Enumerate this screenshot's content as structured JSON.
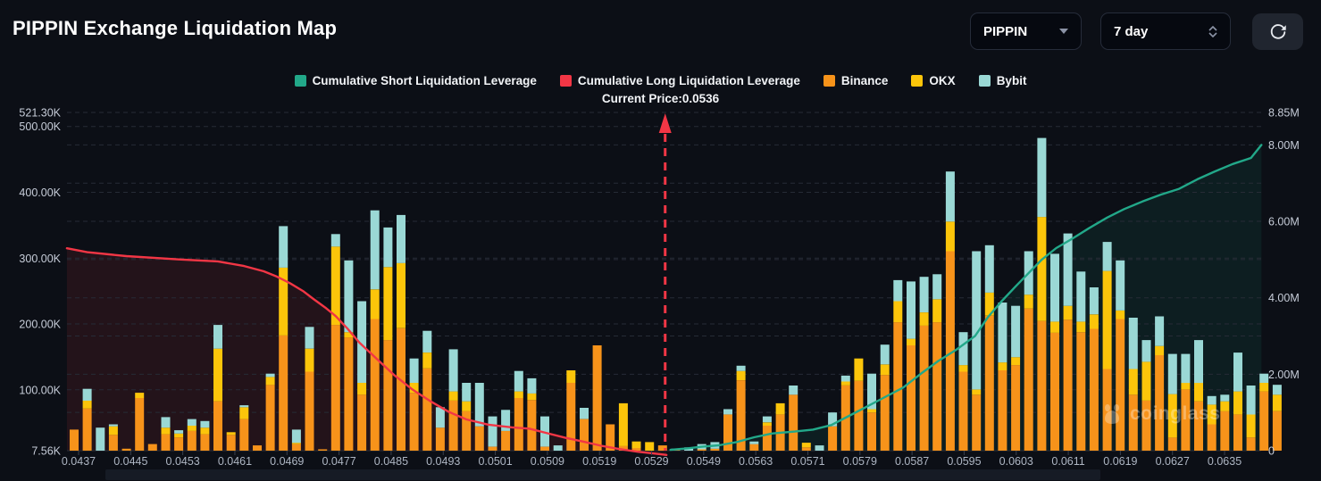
{
  "header": {
    "title": "PIPPIN Exchange Liquidation Map",
    "coin_select_value": "PIPPIN",
    "period_select_value": "7 day"
  },
  "legend": {
    "items": [
      {
        "label": "Cumulative Short Liquidation Leverage",
        "color": "#22a889"
      },
      {
        "label": "Cumulative Long Liquidation Leverage",
        "color": "#f23645"
      },
      {
        "label": "Binance",
        "color": "#f7931a"
      },
      {
        "label": "OKX",
        "color": "#fcc50a"
      },
      {
        "label": "Bybit",
        "color": "#9ad8d5"
      }
    ]
  },
  "annotation": {
    "current_price_text": "Current Price:0.0536",
    "line_color": "#f23645"
  },
  "watermark": {
    "text": "coinglass"
  },
  "chart_data": {
    "type": "bar",
    "subtype": "stacked-bars-with-cumulative-lines",
    "title": "PIPPIN Exchange Liquidation Map",
    "current_price": 0.0536,
    "current_price_bar_index": 45.2,
    "left_axis": {
      "unit": "K",
      "min": 7.56,
      "max": 521.3,
      "labels": [
        {
          "v": 521.3,
          "t": "521.30K"
        },
        {
          "v": 500,
          "t": "500.00K"
        },
        {
          "v": 400,
          "t": "400.00K"
        },
        {
          "v": 300,
          "t": "300.00K"
        },
        {
          "v": 200,
          "t": "200.00K"
        },
        {
          "v": 100,
          "t": "100.00K"
        },
        {
          "v": 7.56,
          "t": "7.56K"
        }
      ],
      "grid_values": [
        521.3,
        500,
        400,
        300,
        200,
        100
      ]
    },
    "right_axis": {
      "unit": "M",
      "min": 0,
      "max": 8.85,
      "labels": [
        {
          "v": 8.85,
          "t": "8.85M"
        },
        {
          "v": 8,
          "t": "8.00M"
        },
        {
          "v": 6,
          "t": "6.00M"
        },
        {
          "v": 4,
          "t": "4.00M"
        },
        {
          "v": 2,
          "t": "2.00M"
        },
        {
          "v": 0,
          "t": "0"
        }
      ],
      "grid_values": [
        8.85,
        8,
        7,
        6,
        5,
        4,
        3,
        2,
        1
      ]
    },
    "x_axis": {
      "labels": [
        "0.0437",
        "0.0445",
        "0.0453",
        "0.0461",
        "0.0469",
        "0.0477",
        "0.0485",
        "0.0493",
        "0.0501",
        "0.0509",
        "0.0519",
        "0.0529",
        "0.0549",
        "0.0563",
        "0.0571",
        "0.0579",
        "0.0587",
        "0.0595",
        "0.0603",
        "0.0611",
        "0.0619",
        "0.0627",
        "0.0635"
      ],
      "bars_per_label": 4
    },
    "bars": {
      "series_order": [
        "Binance",
        "OKX",
        "Bybit"
      ],
      "colors": [
        "#f7931a",
        "#fcc50a",
        "#9ad8d5"
      ],
      "unit": "K",
      "data": [
        [
          32,
          0,
          0
        ],
        [
          64,
          12,
          18
        ],
        [
          0,
          0,
          35
        ],
        [
          24,
          13,
          3
        ],
        [
          3,
          0,
          0
        ],
        [
          80,
          8,
          0
        ],
        [
          10,
          0,
          0
        ],
        [
          25,
          10,
          16
        ],
        [
          20,
          6,
          5
        ],
        [
          30,
          8,
          10
        ],
        [
          25,
          10,
          10
        ],
        [
          75,
          80,
          36
        ],
        [
          24,
          4,
          0
        ],
        [
          48,
          18,
          3
        ],
        [
          8,
          0,
          0
        ],
        [
          100,
          12,
          5
        ],
        [
          175,
          103,
          63
        ],
        [
          10,
          2,
          20
        ],
        [
          120,
          35,
          33
        ],
        [
          2,
          0,
          0
        ],
        [
          191,
          119,
          19
        ],
        [
          172,
          8,
          109
        ],
        [
          85,
          18,
          124
        ],
        [
          200,
          45,
          120
        ],
        [
          168,
          111,
          60
        ],
        [
          186,
          99,
          73
        ],
        [
          88,
          15,
          37
        ],
        [
          125,
          24,
          33
        ],
        [
          35,
          0,
          31
        ],
        [
          76,
          14,
          64
        ],
        [
          60,
          15,
          28
        ],
        [
          37,
          0,
          66
        ],
        [
          6,
          0,
          46
        ],
        [
          30,
          0,
          32
        ],
        [
          80,
          10,
          31
        ],
        [
          77,
          10,
          23
        ],
        [
          6,
          0,
          46
        ],
        [
          0,
          0,
          8
        ],
        [
          103,
          19,
          0
        ],
        [
          48,
          0,
          17
        ],
        [
          160,
          0,
          0
        ],
        [
          40,
          0,
          0
        ],
        [
          7,
          65,
          0
        ],
        [
          4,
          10,
          0
        ],
        [
          0,
          13,
          0
        ],
        [
          8,
          0,
          0
        ],
        [
          1,
          0,
          2
        ],
        [
          0,
          0,
          5
        ],
        [
          2,
          0,
          8
        ],
        [
          3,
          0,
          10
        ],
        [
          55,
          0,
          8
        ],
        [
          107,
          14,
          8
        ],
        [
          10,
          0,
          4
        ],
        [
          38,
          5,
          9
        ],
        [
          55,
          17,
          0
        ],
        [
          85,
          0,
          14
        ],
        [
          5,
          7,
          0
        ],
        [
          0,
          0,
          8
        ],
        [
          37,
          0,
          21
        ],
        [
          99,
          6,
          9
        ],
        [
          106,
          34,
          0
        ],
        [
          58,
          5,
          54
        ],
        [
          115,
          16,
          30
        ],
        [
          195,
          32,
          32
        ],
        [
          160,
          10,
          87
        ],
        [
          190,
          20,
          54
        ],
        [
          195,
          35,
          38
        ],
        [
          303,
          45,
          76
        ],
        [
          120,
          10,
          50
        ],
        [
          85,
          8,
          210
        ],
        [
          205,
          35,
          72
        ],
        [
          122,
          12,
          91
        ],
        [
          130,
          12,
          78
        ],
        [
          216,
          21,
          66
        ],
        [
          197,
          158,
          120
        ],
        [
          179,
          17,
          103
        ],
        [
          199,
          21,
          110
        ],
        [
          180,
          16,
          76
        ],
        [
          185,
          22,
          41
        ],
        [
          124,
          149,
          44
        ],
        [
          200,
          13,
          76
        ],
        [
          85,
          39,
          78
        ],
        [
          76,
          59,
          33
        ],
        [
          145,
          14,
          45
        ],
        [
          20,
          66,
          61
        ],
        [
          93,
          10,
          44
        ],
        [
          75,
          28,
          65
        ],
        [
          40,
          30,
          13
        ],
        [
          60,
          15,
          10
        ],
        [
          55,
          35,
          59
        ],
        [
          20,
          35,
          44
        ],
        [
          90,
          13,
          14
        ],
        [
          60,
          25,
          15
        ]
      ]
    },
    "lines": [
      {
        "name": "Cumulative Long Liquidation Leverage",
        "axis": "left",
        "color": "#f23645",
        "fill": "rgba(242,54,69,0.10)",
        "points": [
          [
            -0.55,
            315
          ],
          [
            1,
            309
          ],
          [
            4,
            303
          ],
          [
            8,
            298
          ],
          [
            11,
            295
          ],
          [
            13,
            288
          ],
          [
            14.5,
            280
          ],
          [
            15.5,
            272
          ],
          [
            16.5,
            262
          ],
          [
            17.5,
            250
          ],
          [
            18.3,
            238
          ],
          [
            19.2,
            225
          ],
          [
            20,
            212
          ],
          [
            20.9,
            193
          ],
          [
            21.8,
            172
          ],
          [
            23.2,
            146
          ],
          [
            24.5,
            122
          ],
          [
            25.9,
            100
          ],
          [
            27.3,
            82
          ],
          [
            28.7,
            66
          ],
          [
            30,
            55
          ],
          [
            31.7,
            47
          ],
          [
            33.5,
            43
          ],
          [
            34.8,
            41
          ],
          [
            36.2,
            34
          ],
          [
            37.6,
            27
          ],
          [
            39,
            21
          ],
          [
            40.3,
            15
          ],
          [
            41.7,
            10
          ],
          [
            43.1,
            6
          ],
          [
            44.5,
            3
          ],
          [
            45.3,
            1
          ]
        ]
      },
      {
        "name": "Cumulative Short Liquidation Leverage",
        "axis": "right",
        "color": "#22a889",
        "fill": "rgba(34,168,137,0.10)",
        "points": [
          [
            45.6,
            0.02
          ],
          [
            46.9,
            0.06
          ],
          [
            47.9,
            0.1
          ],
          [
            49.3,
            0.14
          ],
          [
            50.6,
            0.22
          ],
          [
            52,
            0.35
          ],
          [
            53.4,
            0.45
          ],
          [
            55.1,
            0.5
          ],
          [
            56.5,
            0.55
          ],
          [
            57.9,
            0.67
          ],
          [
            59.2,
            0.9
          ],
          [
            60.6,
            1.15
          ],
          [
            62,
            1.4
          ],
          [
            63.4,
            1.65
          ],
          [
            64.7,
            2.0
          ],
          [
            66.1,
            2.35
          ],
          [
            67.5,
            2.65
          ],
          [
            68.9,
            3.0
          ],
          [
            69.9,
            3.5
          ],
          [
            70.9,
            3.9
          ],
          [
            72,
            4.3
          ],
          [
            73,
            4.65
          ],
          [
            74,
            5.0
          ],
          [
            75.1,
            5.3
          ],
          [
            76.2,
            5.52
          ],
          [
            77.6,
            5.82
          ],
          [
            79,
            6.1
          ],
          [
            80.3,
            6.32
          ],
          [
            81.7,
            6.52
          ],
          [
            83.1,
            6.7
          ],
          [
            84.5,
            6.85
          ],
          [
            85.9,
            7.1
          ],
          [
            87.2,
            7.3
          ],
          [
            88.6,
            7.5
          ],
          [
            90,
            7.66
          ],
          [
            90.8,
            8.0
          ]
        ]
      }
    ]
  }
}
